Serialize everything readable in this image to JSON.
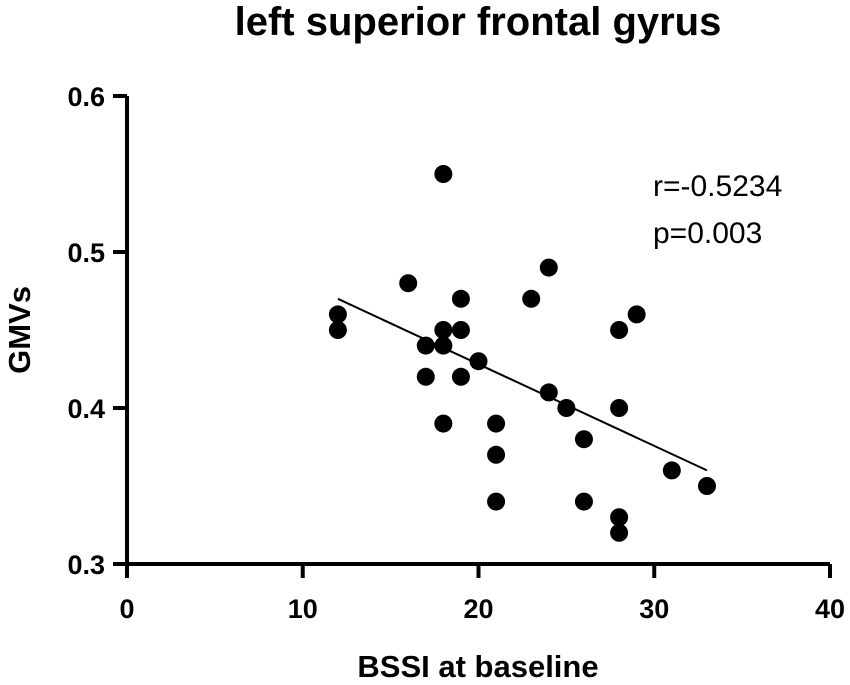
{
  "chart_data": {
    "type": "scatter",
    "title": "left superior frontal gyrus",
    "xlabel": "BSSI at baseline",
    "ylabel": "GMVs",
    "xlim": [
      0,
      40
    ],
    "ylim": [
      0.3,
      0.6
    ],
    "x_ticks": [
      0,
      10,
      20,
      30,
      40
    ],
    "y_ticks": [
      0.3,
      0.4,
      0.5,
      0.6
    ],
    "y_tick_labels": [
      "0.3",
      "0.4",
      "0.5",
      "0.6"
    ],
    "x_tick_labels": [
      "0",
      "10",
      "20",
      "30",
      "40"
    ],
    "grid": false,
    "points": [
      {
        "x": 12,
        "y": 0.46
      },
      {
        "x": 12,
        "y": 0.45
      },
      {
        "x": 16,
        "y": 0.48
      },
      {
        "x": 17,
        "y": 0.44
      },
      {
        "x": 17,
        "y": 0.42
      },
      {
        "x": 18,
        "y": 0.55
      },
      {
        "x": 18,
        "y": 0.45
      },
      {
        "x": 18,
        "y": 0.44
      },
      {
        "x": 18,
        "y": 0.39
      },
      {
        "x": 19,
        "y": 0.47
      },
      {
        "x": 19,
        "y": 0.45
      },
      {
        "x": 19,
        "y": 0.42
      },
      {
        "x": 20,
        "y": 0.43
      },
      {
        "x": 21,
        "y": 0.39
      },
      {
        "x": 21,
        "y": 0.37
      },
      {
        "x": 21,
        "y": 0.34
      },
      {
        "x": 23,
        "y": 0.47
      },
      {
        "x": 24,
        "y": 0.49
      },
      {
        "x": 24,
        "y": 0.41
      },
      {
        "x": 25,
        "y": 0.4
      },
      {
        "x": 26,
        "y": 0.38
      },
      {
        "x": 26,
        "y": 0.34
      },
      {
        "x": 28,
        "y": 0.45
      },
      {
        "x": 28,
        "y": 0.4
      },
      {
        "x": 28,
        "y": 0.33
      },
      {
        "x": 28,
        "y": 0.32
      },
      {
        "x": 29,
        "y": 0.46
      },
      {
        "x": 31,
        "y": 0.36
      },
      {
        "x": 33,
        "y": 0.35
      }
    ],
    "fit_line": {
      "x": [
        12,
        33
      ],
      "y": [
        0.47,
        0.36
      ]
    },
    "annotations": [
      "r=-0.5234",
      "p=0.003"
    ],
    "point_color": "#000000"
  }
}
